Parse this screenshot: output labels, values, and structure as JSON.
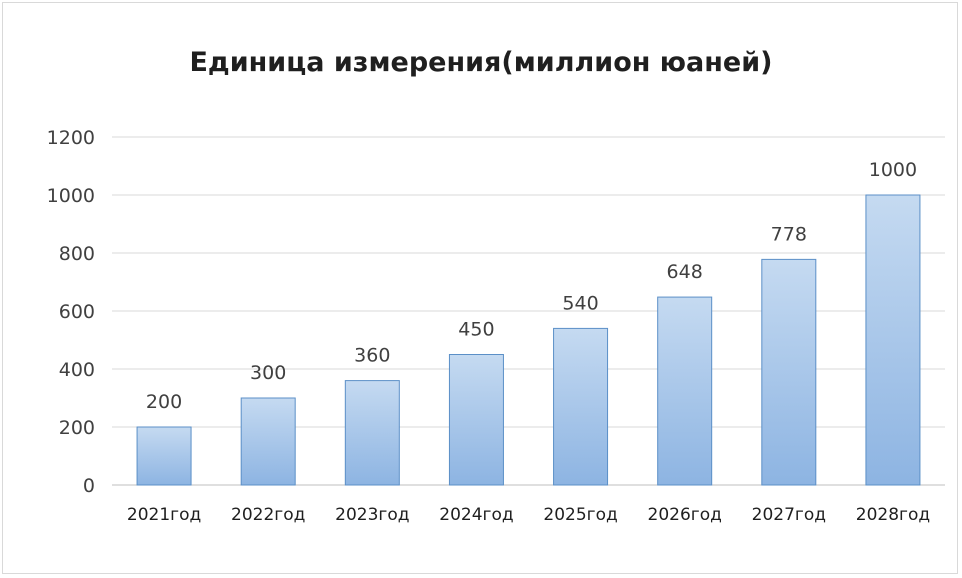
{
  "chart_data": {
    "type": "bar",
    "title": "Единица измерения(миллион юаней)",
    "xlabel": "",
    "ylabel": "",
    "categories": [
      "2021год",
      "2022год",
      "2023год",
      "2024год",
      "2025год",
      "2026год",
      "2027год",
      "2028год"
    ],
    "series": [
      {
        "values": [
          200,
          300,
          360,
          450,
          540,
          648,
          778,
          1000
        ],
        "color": "#9dc3e6"
      }
    ],
    "data_labels": [
      "200",
      "300",
      "360",
      "450",
      "540",
      "648",
      "778",
      "1000"
    ],
    "yticks": [
      "0",
      "200",
      "400",
      "600",
      "800",
      "1000",
      "1200"
    ],
    "ylim": [
      0,
      1200
    ],
    "grid": true,
    "legend": "none",
    "colors": {
      "bar_top": "#c5daf1",
      "bar_bottom": "#8db4e2",
      "bar_border": "#5b8fc7",
      "grid": "#d9d9d9",
      "axis": "#bfbfbf"
    }
  }
}
